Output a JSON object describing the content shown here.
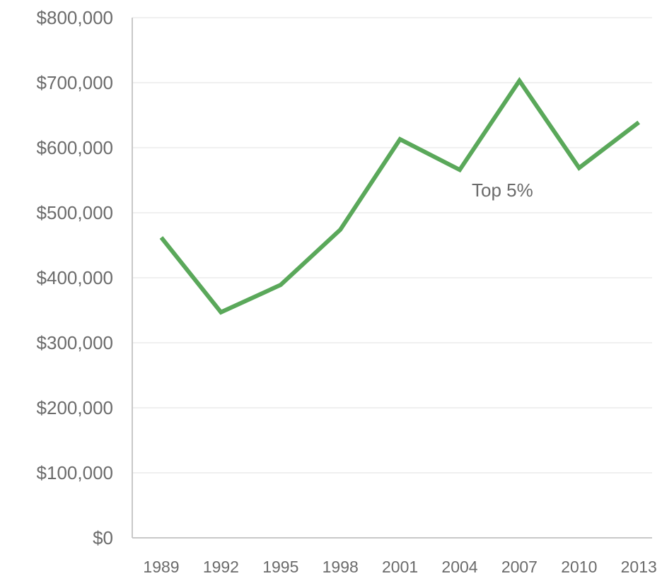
{
  "chart_data": {
    "type": "line",
    "title": "",
    "xlabel": "",
    "ylabel": "",
    "categories": [
      "1989",
      "1992",
      "1995",
      "1998",
      "2001",
      "2004",
      "2007",
      "2010",
      "2013"
    ],
    "y_tick_labels": [
      "$0",
      "$100,000",
      "$200,000",
      "$300,000",
      "$400,000",
      "$500,000",
      "$600,000",
      "$700,000",
      "$800,000"
    ],
    "ylim": [
      0,
      800000
    ],
    "grid": true,
    "series": [
      {
        "name": "Top 5%",
        "color": "#5aa85a",
        "values": [
          462000,
          347000,
          389000,
          474000,
          613000,
          566000,
          703000,
          569000,
          639000
        ]
      }
    ]
  }
}
